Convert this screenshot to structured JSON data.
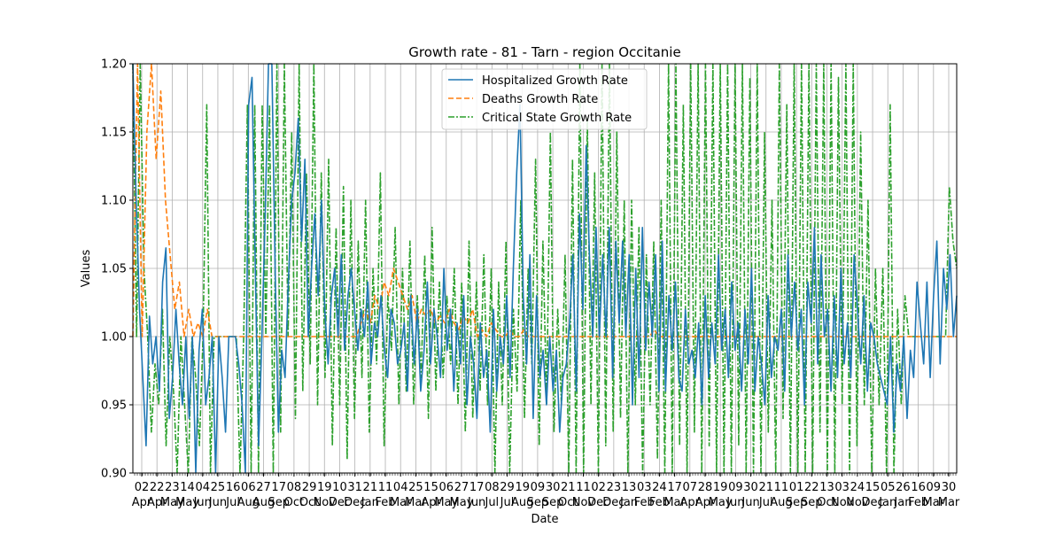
{
  "chart_data": {
    "type": "line",
    "title": "Growth rate - 81 - Tarn - region Occitanie",
    "xlabel": "Date",
    "ylabel": "Values",
    "ylim": [
      0.9,
      1.2
    ],
    "yticks": [
      "0.90",
      "0.95",
      "1.00",
      "1.05",
      "1.10",
      "1.15",
      "1.20"
    ],
    "ytick_values": [
      0.9,
      0.95,
      1.0,
      1.05,
      1.1,
      1.15,
      1.2
    ],
    "grid": true,
    "legend_position": "upper center",
    "x_tick_labels": [
      {
        "day": "02",
        "month": "Apr"
      },
      {
        "day": "22",
        "month": "Apr"
      },
      {
        "day": "23",
        "month": "May"
      },
      {
        "day": "14",
        "month": "May"
      },
      {
        "day": "04",
        "month": "Jun"
      },
      {
        "day": "25",
        "month": "Jun"
      },
      {
        "day": "16",
        "month": "Jul"
      },
      {
        "day": "06",
        "month": "Aug"
      },
      {
        "day": "27",
        "month": "Aug"
      },
      {
        "day": "17",
        "month": "Sep"
      },
      {
        "day": "08",
        "month": "Oct"
      },
      {
        "day": "29",
        "month": "Oct"
      },
      {
        "day": "19",
        "month": "Nov"
      },
      {
        "day": "10",
        "month": "Dec"
      },
      {
        "day": "31",
        "month": "Dec"
      },
      {
        "day": "21",
        "month": "Jan"
      },
      {
        "day": "11",
        "month": "Feb"
      },
      {
        "day": "04",
        "month": "Mar"
      },
      {
        "day": "25",
        "month": "Mar"
      },
      {
        "day": "15",
        "month": "Apr"
      },
      {
        "day": "06",
        "month": "May"
      },
      {
        "day": "27",
        "month": "May"
      },
      {
        "day": "17",
        "month": "Jun"
      },
      {
        "day": "08",
        "month": "Jul"
      },
      {
        "day": "29",
        "month": "Jul"
      },
      {
        "day": "19",
        "month": "Aug"
      },
      {
        "day": "09",
        "month": "Sep"
      },
      {
        "day": "30",
        "month": "Sep"
      },
      {
        "day": "21",
        "month": "Oct"
      },
      {
        "day": "11",
        "month": "Nov"
      },
      {
        "day": "02",
        "month": "Dec"
      },
      {
        "day": "23",
        "month": "Dec"
      },
      {
        "day": "13",
        "month": "Jan"
      },
      {
        "day": "03",
        "month": "Feb"
      },
      {
        "day": "24",
        "month": "Feb"
      },
      {
        "day": "17",
        "month": "Mar"
      },
      {
        "day": "07",
        "month": "Apr"
      },
      {
        "day": "28",
        "month": "Apr"
      },
      {
        "day": "19",
        "month": "May"
      },
      {
        "day": "09",
        "month": "Jun"
      },
      {
        "day": "30",
        "month": "Jun"
      },
      {
        "day": "21",
        "month": "Jul"
      },
      {
        "day": "11",
        "month": "Aug"
      },
      {
        "day": "01",
        "month": "Sep"
      },
      {
        "day": "22",
        "month": "Sep"
      },
      {
        "day": "13",
        "month": "Oct"
      },
      {
        "day": "03",
        "month": "Nov"
      },
      {
        "day": "24",
        "month": "Nov"
      },
      {
        "day": "15",
        "month": "Dec"
      },
      {
        "day": "05",
        "month": "Jan"
      },
      {
        "day": "26",
        "month": "Jan"
      },
      {
        "day": "16",
        "month": "Feb"
      },
      {
        "day": "09",
        "month": "Mar"
      },
      {
        "day": "30",
        "month": "Mar"
      }
    ],
    "series": [
      {
        "name": "Hospitalized Growth Rate",
        "color": "#1f77b4",
        "style": "solid",
        "values": [
          1.2,
          1.1,
          1.02,
          0.97,
          0.92,
          1.015,
          0.98,
          1.0,
          0.96,
          1.04,
          1.065,
          0.94,
          0.97,
          1.02,
          0.98,
          0.95,
          1.0,
          0.94,
          1.0,
          0.9,
          0.99,
          1.02,
          0.95,
          0.97,
          1.0,
          0.9,
          1.0,
          0.97,
          0.93,
          1.0,
          1.0,
          1.0,
          0.98,
          0.95,
          0.9,
          1.17,
          1.19,
          1.05,
          0.92,
          1.0,
          1.09,
          1.2,
          1.2,
          1.05,
          0.93,
          0.99,
          0.97,
          1.04,
          1.1,
          1.12,
          1.16,
          1.07,
          1.13,
          1.0,
          1.05,
          1.09,
          1.03,
          1.1,
          1.02,
          0.98,
          1.03,
          1.05,
          1.0,
          1.06,
          0.99,
          1.03,
          1.05,
          1.02,
          0.99,
          1.02,
          1.0,
          1.04,
          0.98,
          1.01,
          1.0,
          1.03,
          0.99,
          0.97,
          1.02,
          1.01,
          0.98,
          0.99,
          1.01,
          0.96,
          1.03,
          0.98,
          1.02,
          0.96,
          0.99,
          1.04,
          0.98,
          1.02,
          1.0,
          0.97,
          1.05,
          0.99,
          1.02,
          0.96,
          1.01,
          0.98,
          1.03,
          0.95,
          1.0,
          0.98,
          0.94,
          1.01,
          0.97,
          0.99,
          0.93,
          1.02,
          0.96,
          1.0,
          0.98,
          1.03,
          0.97,
          1.05,
          1.12,
          1.17,
          1.03,
          0.98,
          1.06,
          0.94,
          1.03,
          0.97,
          0.99,
          0.95,
          1.0,
          0.96,
          0.99,
          0.93,
          0.97,
          0.98,
          1.01,
          1.06,
          0.96,
          1.09,
          1.02,
          1.14,
          1.06,
          1.0,
          1.08,
          1.0,
          1.06,
          1.0,
          1.08,
          0.97,
          1.07,
          1.01,
          1.07,
          1.0,
          1.06,
          0.95,
          1.05,
          0.97,
          1.08,
          0.99,
          1.04,
          1.0,
          1.06,
          0.96,
          1.07,
          0.96,
          1.03,
          0.99,
          1.04,
          0.97,
          0.96,
          1.02,
          0.98,
          0.99,
          0.97,
          1.01,
          0.95,
          1.03,
          0.97,
          1.01,
          0.98,
          1.06,
          0.99,
          1.02,
          0.97,
          1.04,
          0.99,
          1.01,
          0.96,
          1.02,
          0.98,
          1.05,
          0.96,
          1.0,
          0.98,
          0.95,
          1.03,
          0.97,
          1.0,
          0.99,
          1.02,
          0.96,
          1.06,
          1.0,
          1.04,
          0.99,
          1.02,
          0.95,
          1.04,
          1.01,
          1.08,
          0.98,
          1.06,
          1.0,
          1.02,
          0.96,
          1.03,
          0.97,
          1.05,
          0.98,
          1.01,
          0.97,
          1.06,
          1.02,
          0.98,
          1.03,
          0.96,
          1.01,
          1.0,
          0.98,
          0.97,
          0.96,
          0.95,
          1.0,
          0.93,
          0.98,
          0.96,
          1.0,
          0.94,
          0.99,
          0.97,
          1.04,
          1.01,
          0.98,
          1.04,
          0.97,
          1.03,
          1.07,
          0.98,
          1.05,
          1.02,
          1.06,
          1.0,
          1.03
        ],
        "x_start": 0.0,
        "x_end": 1.0
      },
      {
        "name": "Deaths Growth Rate",
        "color": "#ff7f0e",
        "style": "dashed",
        "values": [
          1.0,
          1.2,
          1.0,
          1.15,
          1.2,
          1.13,
          1.18,
          1.1,
          1.06,
          1.02,
          1.04,
          1.0,
          1.02,
          1.0,
          1.01,
          1.0,
          1.02,
          1.0,
          1.0,
          1.0,
          1.0,
          1.0,
          1.0,
          1.0,
          1.0,
          1.0,
          1.0,
          1.0,
          1.0,
          1.0,
          1.0,
          1.0,
          1.0,
          1.0,
          1.0,
          1.0,
          1.0,
          1.0,
          1.0,
          1.0,
          1.0,
          1.0,
          1.0,
          1.0,
          1.0,
          1.0,
          1.0,
          1.0,
          1.0,
          1.01,
          1.02,
          1.01,
          1.03,
          1.02,
          1.04,
          1.03,
          1.05,
          1.04,
          1.03,
          1.02,
          1.03,
          1.01,
          1.02,
          1.015,
          1.02,
          1.01,
          1.015,
          1.01,
          1.02,
          1.01,
          1.005,
          1.015,
          1.01,
          1.02,
          1.0,
          1.005,
          1.0,
          1.01,
          1.005,
          1.0,
          1.0,
          1.005,
          1.0,
          1.0,
          1.005,
          1.0,
          1.0,
          1.0,
          1.0,
          1.0,
          1.0,
          1.0,
          1.0,
          1.0,
          1.0,
          1.0,
          1.0,
          1.0,
          1.0,
          1.0,
          1.0,
          1.0,
          1.0,
          1.0,
          1.0,
          1.0,
          1.0,
          1.0,
          1.0,
          1.0,
          1.0,
          1.0,
          1.005,
          1.0,
          1.0,
          1.0,
          1.0,
          1.0,
          1.0,
          1.0,
          1.0,
          1.0,
          1.0,
          1.0,
          1.0,
          1.0,
          1.0,
          1.0,
          1.0,
          1.0,
          1.0,
          1.0,
          1.0,
          1.0,
          1.0,
          1.0,
          1.0,
          1.0,
          1.0,
          1.0,
          1.0,
          1.0,
          1.0,
          1.0,
          1.0,
          1.0,
          1.0,
          1.0,
          1.0,
          1.0,
          1.0,
          1.0,
          1.0,
          1.0,
          1.0,
          1.0,
          1.0,
          1.0,
          1.0,
          1.0,
          1.0,
          1.0,
          1.0,
          1.0,
          1.0,
          1.0,
          1.0,
          1.0,
          1.0,
          1.0,
          1.0,
          1.0,
          1.0,
          1.0,
          1.0,
          1.0,
          1.0,
          1.0
        ],
        "x_start": 0.0,
        "x_end": 1.0
      },
      {
        "name": "Critical State Growth Rate",
        "color": "#2ca02c",
        "style": "dashdot",
        "values": [
          1.2,
          1.0,
          1.2,
          1.05,
          1.0,
          0.93,
          0.98,
          0.95,
          1.02,
          0.92,
          1.0,
          0.96,
          0.9,
          1.0,
          0.95,
          0.9,
          1.0,
          0.97,
          0.92,
          1.0,
          1.17,
          0.9,
          1.0,
          1.0,
          1.0,
          1.0,
          1.0,
          1.0,
          1.0,
          0.9,
          1.0,
          1.17,
          0.9,
          1.17,
          0.9,
          1.17,
          1.0,
          1.17,
          0.9,
          1.2,
          0.93,
          1.2,
          1.0,
          1.15,
          0.94,
          1.2,
          0.96,
          1.12,
          0.98,
          1.2,
          0.95,
          1.12,
          0.97,
          1.13,
          0.92,
          1.08,
          0.95,
          1.11,
          0.91,
          1.1,
          0.94,
          1.07,
          0.97,
          1.1,
          0.93,
          1.05,
          0.98,
          1.12,
          0.92,
          1.03,
          0.99,
          1.08,
          0.95,
          1.05,
          0.96,
          1.07,
          0.95,
          1.03,
          0.97,
          1.06,
          0.94,
          1.08,
          0.96,
          1.04,
          0.97,
          1.03,
          0.98,
          1.05,
          0.95,
          1.04,
          0.93,
          1.07,
          0.94,
          1.04,
          0.96,
          1.06,
          0.95,
          1.05,
          0.9,
          1.04,
          0.95,
          1.07,
          0.9,
          1.02,
          0.96,
          1.1,
          0.94,
          1.05,
          0.98,
          1.13,
          0.92,
          1.07,
          0.95,
          1.15,
          0.93,
          1.02,
          0.95,
          1.06,
          0.9,
          1.13,
          0.9,
          1.2,
          0.9,
          1.16,
          0.95,
          1.12,
          0.9,
          1.2,
          0.92,
          1.2,
          0.93,
          1.15,
          0.94,
          1.1,
          0.9,
          1.1,
          0.95,
          1.08,
          0.9,
          1.06,
          0.95,
          1.07,
          0.91,
          1.1,
          0.9,
          1.2,
          0.9,
          1.2,
          0.92,
          1.17,
          0.9,
          1.2,
          0.93,
          1.2,
          0.9,
          1.2,
          0.92,
          1.2,
          0.9,
          1.2,
          0.9,
          1.2,
          0.9,
          1.2,
          0.92,
          1.2,
          0.9,
          1.19,
          0.9,
          1.2,
          0.9,
          1.15,
          0.93,
          1.1,
          0.9,
          1.2,
          0.94,
          1.17,
          0.9,
          1.2,
          0.9,
          1.2,
          0.9,
          1.2,
          0.9,
          1.2,
          0.93,
          1.2,
          0.9,
          1.2,
          0.9,
          1.19,
          0.95,
          1.2,
          0.9,
          1.2,
          0.92,
          1.15,
          0.95,
          1.1,
          0.9,
          1.05,
          0.95,
          1.05,
          0.9,
          1.17,
          0.9,
          1.02,
          0.95,
          1.03,
          1.0,
          1.0,
          1.0,
          1.0,
          1.0,
          1.0,
          1.0,
          1.0,
          1.0,
          1.0,
          1.0,
          1.11,
          1.07,
          1.05
        ],
        "x_start": 0.0,
        "x_end": 1.0
      }
    ]
  }
}
